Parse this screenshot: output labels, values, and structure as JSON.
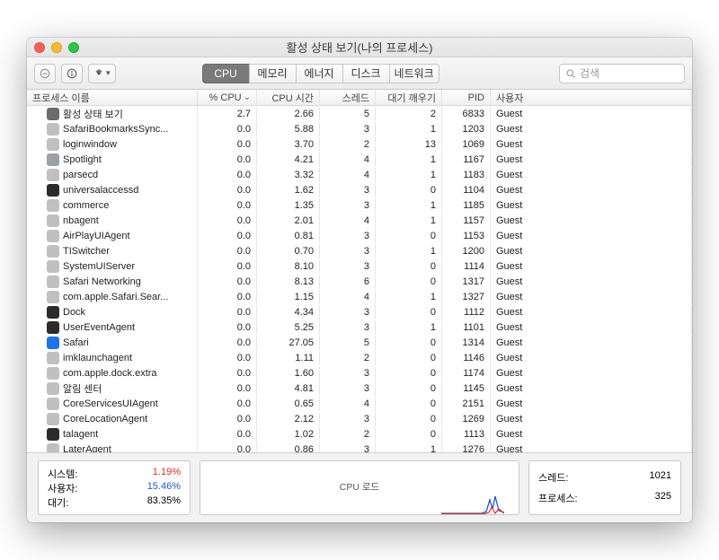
{
  "window": {
    "title": "활성 상태 보기(나의 프로세스)"
  },
  "traffic_colors": {
    "close": "#ff5f57",
    "min": "#febc2e",
    "max": "#28c840"
  },
  "toolbar": {
    "tabs": [
      "CPU",
      "메모리",
      "에너지",
      "디스크",
      "네트워크"
    ],
    "active_tab": 0,
    "search_placeholder": "검색"
  },
  "columns": {
    "name": "프로세스 이름",
    "cpu": "% CPU",
    "time": "CPU 시간",
    "threads": "스레드",
    "wakeups": "대기 깨우기",
    "pid": "PID",
    "user": "사용자"
  },
  "processes": [
    {
      "icon": "#6b6b6b",
      "name": "활성 상태 보기",
      "cpu": "2.7",
      "time": "2.66",
      "thr": "5",
      "wake": "2",
      "pid": "6833",
      "user": "Guest"
    },
    {
      "icon": "#c0c0c0",
      "name": "SafariBookmarksSync...",
      "cpu": "0.0",
      "time": "5.88",
      "thr": "3",
      "wake": "1",
      "pid": "1203",
      "user": "Guest"
    },
    {
      "icon": "#c0c0c0",
      "name": "loginwindow",
      "cpu": "0.0",
      "time": "3.70",
      "thr": "2",
      "wake": "13",
      "pid": "1069",
      "user": "Guest"
    },
    {
      "icon": "#9aa0a6",
      "name": "Spotlight",
      "cpu": "0.0",
      "time": "4.21",
      "thr": "4",
      "wake": "1",
      "pid": "1167",
      "user": "Guest"
    },
    {
      "icon": "#c0c0c0",
      "name": "parsecd",
      "cpu": "0.0",
      "time": "3.32",
      "thr": "4",
      "wake": "1",
      "pid": "1183",
      "user": "Guest"
    },
    {
      "icon": "#2b2b2b",
      "name": "universalaccessd",
      "cpu": "0.0",
      "time": "1.62",
      "thr": "3",
      "wake": "0",
      "pid": "1104",
      "user": "Guest"
    },
    {
      "icon": "#c0c0c0",
      "name": "commerce",
      "cpu": "0.0",
      "time": "1.35",
      "thr": "3",
      "wake": "1",
      "pid": "1185",
      "user": "Guest"
    },
    {
      "icon": "#c0c0c0",
      "name": "nbagent",
      "cpu": "0.0",
      "time": "2.01",
      "thr": "4",
      "wake": "1",
      "pid": "1157",
      "user": "Guest"
    },
    {
      "icon": "#c0c0c0",
      "name": "AirPlayUIAgent",
      "cpu": "0.0",
      "time": "0.81",
      "thr": "3",
      "wake": "0",
      "pid": "1153",
      "user": "Guest"
    },
    {
      "icon": "#c0c0c0",
      "name": "TISwitcher",
      "cpu": "0.0",
      "time": "0.70",
      "thr": "3",
      "wake": "1",
      "pid": "1200",
      "user": "Guest"
    },
    {
      "icon": "#c0c0c0",
      "name": "SystemUIServer",
      "cpu": "0.0",
      "time": "8.10",
      "thr": "3",
      "wake": "0",
      "pid": "1114",
      "user": "Guest"
    },
    {
      "icon": "#c0c0c0",
      "name": "Safari Networking",
      "cpu": "0.0",
      "time": "8.13",
      "thr": "6",
      "wake": "0",
      "pid": "1317",
      "user": "Guest"
    },
    {
      "icon": "#c0c0c0",
      "name": "com.apple.Safari.Sear...",
      "cpu": "0.0",
      "time": "1.15",
      "thr": "4",
      "wake": "1",
      "pid": "1327",
      "user": "Guest"
    },
    {
      "icon": "#2b2b2b",
      "name": "Dock",
      "cpu": "0.0",
      "time": "4.34",
      "thr": "3",
      "wake": "0",
      "pid": "1112",
      "user": "Guest"
    },
    {
      "icon": "#2b2b2b",
      "name": "UserEventAgent",
      "cpu": "0.0",
      "time": "5.25",
      "thr": "3",
      "wake": "1",
      "pid": "1101",
      "user": "Guest"
    },
    {
      "icon": "#1e73e8",
      "name": "Safari",
      "cpu": "0.0",
      "time": "27.05",
      "thr": "5",
      "wake": "0",
      "pid": "1314",
      "user": "Guest"
    },
    {
      "icon": "#c0c0c0",
      "name": "imklaunchagent",
      "cpu": "0.0",
      "time": "1.11",
      "thr": "2",
      "wake": "0",
      "pid": "1146",
      "user": "Guest"
    },
    {
      "icon": "#c0c0c0",
      "name": "com.apple.dock.extra",
      "cpu": "0.0",
      "time": "1.60",
      "thr": "3",
      "wake": "0",
      "pid": "1174",
      "user": "Guest"
    },
    {
      "icon": "#c0c0c0",
      "name": "알림 센터",
      "cpu": "0.0",
      "time": "4.81",
      "thr": "3",
      "wake": "0",
      "pid": "1145",
      "user": "Guest"
    },
    {
      "icon": "#c0c0c0",
      "name": "CoreServicesUIAgent",
      "cpu": "0.0",
      "time": "0.65",
      "thr": "4",
      "wake": "0",
      "pid": "2151",
      "user": "Guest"
    },
    {
      "icon": "#c0c0c0",
      "name": "CoreLocationAgent",
      "cpu": "0.0",
      "time": "2.12",
      "thr": "3",
      "wake": "0",
      "pid": "1269",
      "user": "Guest"
    },
    {
      "icon": "#2b2b2b",
      "name": "talagent",
      "cpu": "0.0",
      "time": "1.02",
      "thr": "2",
      "wake": "0",
      "pid": "1113",
      "user": "Guest"
    },
    {
      "icon": "#c0c0c0",
      "name": "LaterAgent",
      "cpu": "0.0",
      "time": "0.86",
      "thr": "3",
      "wake": "1",
      "pid": "1276",
      "user": "Guest"
    }
  ],
  "footer": {
    "system_label": "시스템:",
    "system_val": "1.19%",
    "system_color": "#d9301f",
    "user_label": "사용자:",
    "user_val": "15.46%",
    "user_color": "#2158d0",
    "idle_label": "대기:",
    "idle_val": "83.35%",
    "graph_title": "CPU 로드",
    "threads_label": "스레드:",
    "threads_val": "1021",
    "procs_label": "프로세스:",
    "procs_val": "325"
  }
}
